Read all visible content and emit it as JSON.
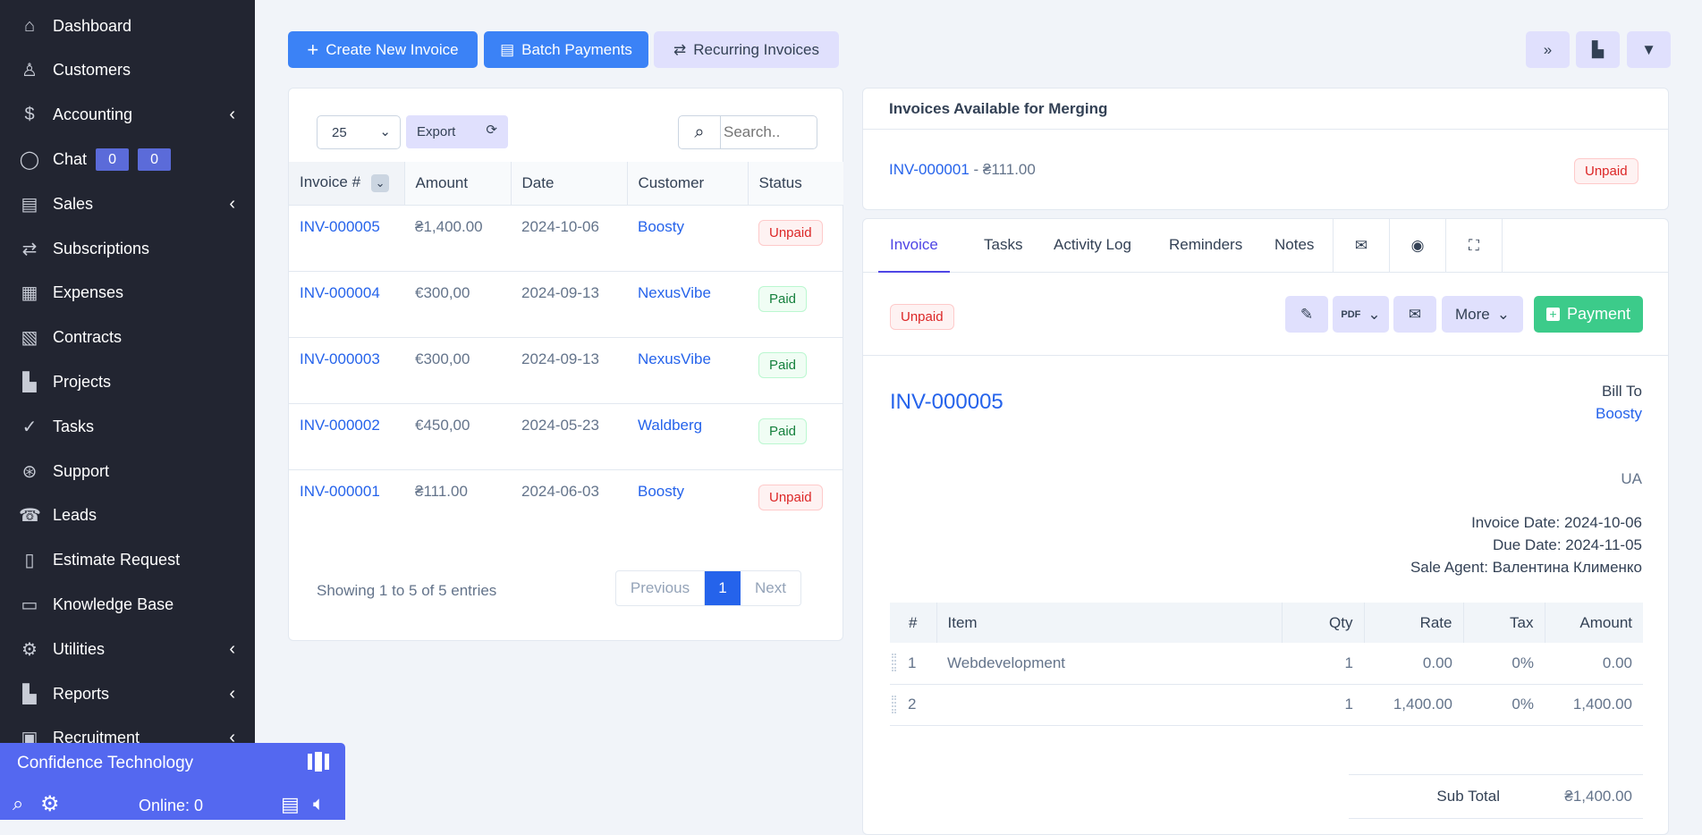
{
  "sidebar": {
    "items": [
      {
        "label": "Dashboard",
        "icon": "home-icon",
        "glyph": "⌂"
      },
      {
        "label": "Customers",
        "icon": "user-icon",
        "glyph": "♙"
      },
      {
        "label": "Accounting",
        "icon": "dollar-icon",
        "glyph": "$",
        "chevron": true
      },
      {
        "label": "Chat",
        "icon": "chat-icon",
        "glyph": "◯",
        "badges": [
          "0",
          "0"
        ]
      },
      {
        "label": "Sales",
        "icon": "receipt-icon",
        "glyph": "▤",
        "chevron": true
      },
      {
        "label": "Subscriptions",
        "icon": "repeat-icon",
        "glyph": "⇄"
      },
      {
        "label": "Expenses",
        "icon": "file-icon",
        "glyph": "▦"
      },
      {
        "label": "Contracts",
        "icon": "contract-icon",
        "glyph": "▧"
      },
      {
        "label": "Projects",
        "icon": "chart-icon",
        "glyph": "▙"
      },
      {
        "label": "Tasks",
        "icon": "check-circle-icon",
        "glyph": "✓"
      },
      {
        "label": "Support",
        "icon": "lifebuoy-icon",
        "glyph": "⊛"
      },
      {
        "label": "Leads",
        "icon": "phone-icon",
        "glyph": "☎"
      },
      {
        "label": "Estimate Request",
        "icon": "document-icon",
        "glyph": "▯"
      },
      {
        "label": "Knowledge Base",
        "icon": "folder-icon",
        "glyph": "▭"
      },
      {
        "label": "Utilities",
        "icon": "cogs-icon",
        "glyph": "⚙",
        "chevron": true
      },
      {
        "label": "Reports",
        "icon": "bar-chart-icon",
        "glyph": "▙",
        "chevron": true
      },
      {
        "label": "Recruitment",
        "icon": "contact-book-icon",
        "glyph": "▣",
        "chevron": true
      }
    ]
  },
  "chat_widget": {
    "title": "Confidence Technology",
    "online": "Online: 0"
  },
  "toolbar": {
    "create": "Create New Invoice",
    "batch": "Batch Payments",
    "recurring": "Recurring Invoices"
  },
  "list": {
    "page_size": "25",
    "export": "Export",
    "search_placeholder": "Search..",
    "columns": [
      "Invoice #",
      "Amount",
      "Date",
      "Customer",
      "Status"
    ],
    "rows": [
      {
        "number": "INV-000005",
        "amount": "₴1,400.00",
        "date": "2024-10-06",
        "customer": "Boosty",
        "status": "Unpaid"
      },
      {
        "number": "INV-000004",
        "amount": "€300,00",
        "date": "2024-09-13",
        "customer": "NexusVibe",
        "status": "Paid"
      },
      {
        "number": "INV-000003",
        "amount": "€300,00",
        "date": "2024-09-13",
        "customer": "NexusVibe",
        "status": "Paid"
      },
      {
        "number": "INV-000002",
        "amount": "€450,00",
        "date": "2024-05-23",
        "customer": "Waldberg",
        "status": "Paid"
      },
      {
        "number": "INV-000001",
        "amount": "₴111.00",
        "date": "2024-06-03",
        "customer": "Boosty",
        "status": "Unpaid"
      }
    ],
    "info": "Showing 1 to 5 of 5 entries",
    "prev": "Previous",
    "page": "1",
    "next": "Next"
  },
  "merge": {
    "title": "Invoices Available for Merging",
    "number": "INV-000001",
    "amount": " - ₴111.00",
    "status": "Unpaid"
  },
  "detail": {
    "tabs": [
      "Invoice",
      "Tasks",
      "Activity Log",
      "Reminders",
      "Notes"
    ],
    "status": "Unpaid",
    "more": "More",
    "payment": "Payment",
    "number": "INV-000005",
    "bill_to": "Bill To",
    "customer": "Boosty",
    "country": "UA",
    "invoice_date_label": "Invoice Date:",
    "invoice_date": "2024-10-06",
    "due_date_label": "Due Date:",
    "due_date": "2024-11-05",
    "agent_label": "Sale Agent:",
    "agent": "Валентина Клименко",
    "columns": [
      "#",
      "Item",
      "Qty",
      "Rate",
      "Tax",
      "Amount"
    ],
    "items": [
      {
        "n": "1",
        "item": "Webdevelopment",
        "qty": "1",
        "rate": "0.00",
        "tax": "0%",
        "amount": "0.00"
      },
      {
        "n": "2",
        "item": "",
        "qty": "1",
        "rate": "1,400.00",
        "tax": "0%",
        "amount": "1,400.00"
      }
    ],
    "subtotal_label": "Sub Total",
    "subtotal": "₴1,400.00"
  },
  "colors": {
    "sidebar": "#222531",
    "primary": "#3b82f6",
    "soft": "#e0e0fd",
    "success": "#3ccb8a",
    "chat": "#5468f0"
  }
}
